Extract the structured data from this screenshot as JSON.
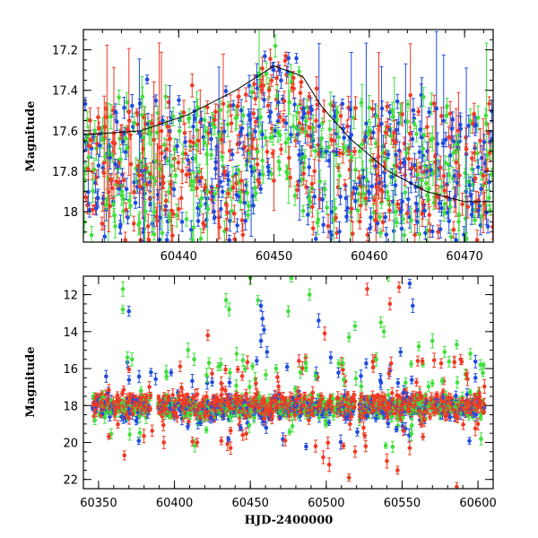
{
  "chart_data": [
    {
      "type": "scatter",
      "panel": "top",
      "ylabel": "Magnitude",
      "xlabel": "",
      "xlim": [
        60430,
        60473
      ],
      "ylim": [
        18.15,
        17.1
      ],
      "y_inverted": true,
      "xticks": [
        60440,
        60450,
        60460,
        60470
      ],
      "xticks_minor_step": 2,
      "yticks": [
        17.2,
        17.4,
        17.6,
        17.8,
        18
      ],
      "yticks_minor_step": 0.05,
      "series_colors": {
        "red": "#f03a24",
        "green": "#3ee03a",
        "blue": "#1f4ce0",
        "model": "#000000"
      },
      "model_curve": [
        [
          60430,
          17.62
        ],
        [
          60436,
          17.6
        ],
        [
          60441,
          17.52
        ],
        [
          60446,
          17.4
        ],
        [
          60450,
          17.28
        ],
        [
          60453,
          17.33
        ],
        [
          60455,
          17.48
        ],
        [
          60458,
          17.64
        ],
        [
          60462,
          17.8
        ],
        [
          60466,
          17.9
        ],
        [
          60470,
          17.95
        ],
        [
          60473,
          17.95
        ]
      ],
      "note_points": "dense phased light curve: each series oscillates between ~17.45 and ~18.1 mag with period ~0.8 d; a brightening centred near HJD 60450 reaches ~17.15 mag"
    },
    {
      "type": "scatter",
      "panel": "bottom",
      "ylabel": "Magnitude",
      "xlabel": "HJD-2400000",
      "xlim": [
        60340,
        60610
      ],
      "ylim": [
        22.5,
        11
      ],
      "y_inverted": true,
      "xticks": [
        60350,
        60400,
        60450,
        60500,
        60550,
        60600
      ],
      "xticks_minor_step": 10,
      "yticks": [
        12,
        14,
        16,
        18,
        20,
        22
      ],
      "yticks_minor_step": 0.5,
      "series_colors": {
        "red": "#f03a24",
        "green": "#3ee03a",
        "blue": "#1f4ce0"
      },
      "baseline_mag": 18.0,
      "outliers": [
        {
          "x": 60366,
          "y": 11.7,
          "c": "green"
        },
        {
          "x": 60366,
          "y": 12.8,
          "c": "green"
        },
        {
          "x": 60370,
          "y": 12.9,
          "c": "blue"
        },
        {
          "x": 60369,
          "y": 15.4,
          "c": "green"
        },
        {
          "x": 60372,
          "y": 15.5,
          "c": "green"
        },
        {
          "x": 60378,
          "y": 17.2,
          "c": "green"
        },
        {
          "x": 60409,
          "y": 15.0,
          "c": "green"
        },
        {
          "x": 60413,
          "y": 15.5,
          "c": "green"
        },
        {
          "x": 60422,
          "y": 14.2,
          "c": "red"
        },
        {
          "x": 60429,
          "y": 15.9,
          "c": "green"
        },
        {
          "x": 60434,
          "y": 12.3,
          "c": "green"
        },
        {
          "x": 60436,
          "y": 12.8,
          "c": "green"
        },
        {
          "x": 60441,
          "y": 15.2,
          "c": "green"
        },
        {
          "x": 60450,
          "y": 11.1,
          "c": "green"
        },
        {
          "x": 60455,
          "y": 12.3,
          "c": "green"
        },
        {
          "x": 60457,
          "y": 12.6,
          "c": "blue"
        },
        {
          "x": 60458,
          "y": 13.3,
          "c": "blue"
        },
        {
          "x": 60459,
          "y": 13.9,
          "c": "blue"
        },
        {
          "x": 60457,
          "y": 14.5,
          "c": "blue"
        },
        {
          "x": 60461,
          "y": 15.1,
          "c": "blue"
        },
        {
          "x": 60467,
          "y": 16.0,
          "c": "green"
        },
        {
          "x": 60475,
          "y": 12.9,
          "c": "green"
        },
        {
          "x": 60477,
          "y": 11.1,
          "c": "green"
        },
        {
          "x": 60483,
          "y": 16.2,
          "c": "green"
        },
        {
          "x": 60489,
          "y": 12.0,
          "c": "green"
        },
        {
          "x": 60493,
          "y": 16.4,
          "c": "green"
        },
        {
          "x": 60495,
          "y": 13.4,
          "c": "blue"
        },
        {
          "x": 60499,
          "y": 14.1,
          "c": "red"
        },
        {
          "x": 60503,
          "y": 15.4,
          "c": "blue"
        },
        {
          "x": 60511,
          "y": 15.7,
          "c": "green"
        },
        {
          "x": 60515,
          "y": 14.3,
          "c": "green"
        },
        {
          "x": 60519,
          "y": 13.7,
          "c": "green"
        },
        {
          "x": 60527,
          "y": 11.7,
          "c": "red"
        },
        {
          "x": 60533,
          "y": 15.5,
          "c": "green"
        },
        {
          "x": 60536,
          "y": 13.5,
          "c": "green"
        },
        {
          "x": 60538,
          "y": 14.0,
          "c": "green"
        },
        {
          "x": 60541,
          "y": 11.0,
          "c": "green"
        },
        {
          "x": 60542,
          "y": 12.5,
          "c": "red"
        },
        {
          "x": 60548,
          "y": 11.6,
          "c": "red"
        },
        {
          "x": 60549,
          "y": 15.1,
          "c": "blue"
        },
        {
          "x": 60555,
          "y": 11.4,
          "c": "blue"
        },
        {
          "x": 60557,
          "y": 12.6,
          "c": "blue"
        },
        {
          "x": 60561,
          "y": 14.8,
          "c": "green"
        },
        {
          "x": 60570,
          "y": 14.5,
          "c": "green"
        },
        {
          "x": 60578,
          "y": 15.1,
          "c": "green"
        },
        {
          "x": 60586,
          "y": 14.7,
          "c": "green"
        },
        {
          "x": 60595,
          "y": 15.2,
          "c": "green"
        },
        {
          "x": 60551,
          "y": 17.3,
          "c": "blue"
        },
        {
          "x": 60367,
          "y": 20.7,
          "c": "red"
        },
        {
          "x": 60393,
          "y": 20.0,
          "c": "red"
        },
        {
          "x": 60415,
          "y": 20.0,
          "c": "red"
        },
        {
          "x": 60437,
          "y": 20.3,
          "c": "red"
        },
        {
          "x": 60445,
          "y": 19.6,
          "c": "red"
        },
        {
          "x": 60473,
          "y": 19.9,
          "c": "red"
        },
        {
          "x": 60493,
          "y": 20.2,
          "c": "red"
        },
        {
          "x": 60498,
          "y": 20.8,
          "c": "red"
        },
        {
          "x": 60502,
          "y": 21.2,
          "c": "red"
        },
        {
          "x": 60515,
          "y": 21.9,
          "c": "red"
        },
        {
          "x": 60519,
          "y": 20.5,
          "c": "red"
        },
        {
          "x": 60526,
          "y": 20.2,
          "c": "red"
        },
        {
          "x": 60540,
          "y": 21.0,
          "c": "red"
        },
        {
          "x": 60547,
          "y": 21.5,
          "c": "red"
        },
        {
          "x": 60555,
          "y": 20.3,
          "c": "red"
        },
        {
          "x": 60586,
          "y": 22.4,
          "c": "red"
        },
        {
          "x": 60600,
          "y": 19.0,
          "c": "red"
        }
      ]
    }
  ]
}
